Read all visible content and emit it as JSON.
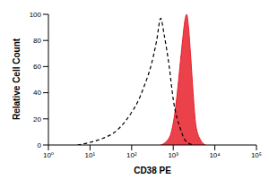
{
  "chart_data": {
    "type": "area",
    "xlabel": "CD38 PE",
    "ylabel": "Relative Cell Count",
    "log": "x",
    "grid": false,
    "xlim": [
      1,
      100000
    ],
    "xticks": [
      {
        "value": 1,
        "label": "10⁰"
      },
      {
        "value": 10,
        "label": "10¹"
      },
      {
        "value": 100,
        "label": "10²"
      },
      {
        "value": 1000,
        "label": "10³"
      },
      {
        "value": 10000,
        "label": "10⁴"
      },
      {
        "value": 100000,
        "label": "10⁵"
      }
    ],
    "ylim": [
      0,
      100
    ],
    "yticks": [
      0,
      20,
      40,
      60,
      80,
      100
    ],
    "series": [
      {
        "type": "line",
        "line_style": "dashed",
        "color": "#000000",
        "x": [
          5,
          10,
          20,
          40,
          70,
          100,
          150,
          200,
          300,
          400,
          500,
          600,
          800,
          1000,
          1500,
          2000,
          3000
        ],
        "values": [
          0,
          2,
          5,
          10,
          18,
          25,
          35,
          45,
          62,
          80,
          97,
          85,
          60,
          35,
          12,
          3,
          0
        ]
      },
      {
        "type": "area",
        "color": "#e8202a",
        "x": [
          500,
          700,
          900,
          1100,
          1300,
          1500,
          1700,
          1900,
          2100,
          2300,
          2600,
          3000,
          3500,
          4500,
          6000
        ],
        "values": [
          0,
          3,
          10,
          25,
          45,
          65,
          82,
          95,
          100,
          92,
          70,
          40,
          15,
          4,
          0
        ]
      }
    ]
  }
}
